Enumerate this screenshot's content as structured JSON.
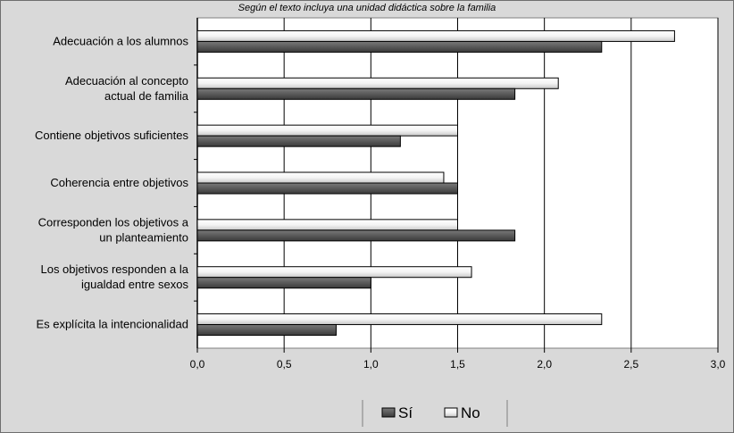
{
  "chart_data": {
    "type": "bar",
    "orientation": "horizontal",
    "title": "Según el texto incluya una unidad didáctica sobre la familia",
    "categories": [
      [
        "Adecuación a los alumnos"
      ],
      [
        "Adecuación al concepto",
        "actual de familia"
      ],
      [
        "Contiene objetivos suficientes"
      ],
      [
        "Coherencia entre objetivos"
      ],
      [
        "Corresponden los objetivos a",
        "un planteamiento"
      ],
      [
        "Los objetivos responden a la",
        "igualdad entre sexos"
      ],
      [
        "Es explícita la intencionalidad"
      ]
    ],
    "series": [
      {
        "name": "No",
        "values": [
          2.75,
          2.08,
          1.5,
          1.42,
          1.5,
          1.58,
          2.33
        ],
        "color": "#f4f4f4"
      },
      {
        "name": "Sí",
        "values": [
          2.33,
          1.83,
          1.17,
          1.5,
          1.83,
          1.0,
          0.8
        ],
        "color": "#5a5a5a"
      }
    ],
    "xlim": [
      0,
      3.0
    ],
    "xticks": [
      "0,0",
      "0,5",
      "1,0",
      "1,5",
      "2,0",
      "2,5",
      "3,0"
    ],
    "grid": true,
    "legend": [
      {
        "label": "Sí",
        "color": "#5a5a5a"
      },
      {
        "label": "No",
        "color": "#f4f4f4"
      }
    ],
    "legend_position": "bottom",
    "plot_background": "#ffffff",
    "page_background": "#d9d9d9"
  }
}
